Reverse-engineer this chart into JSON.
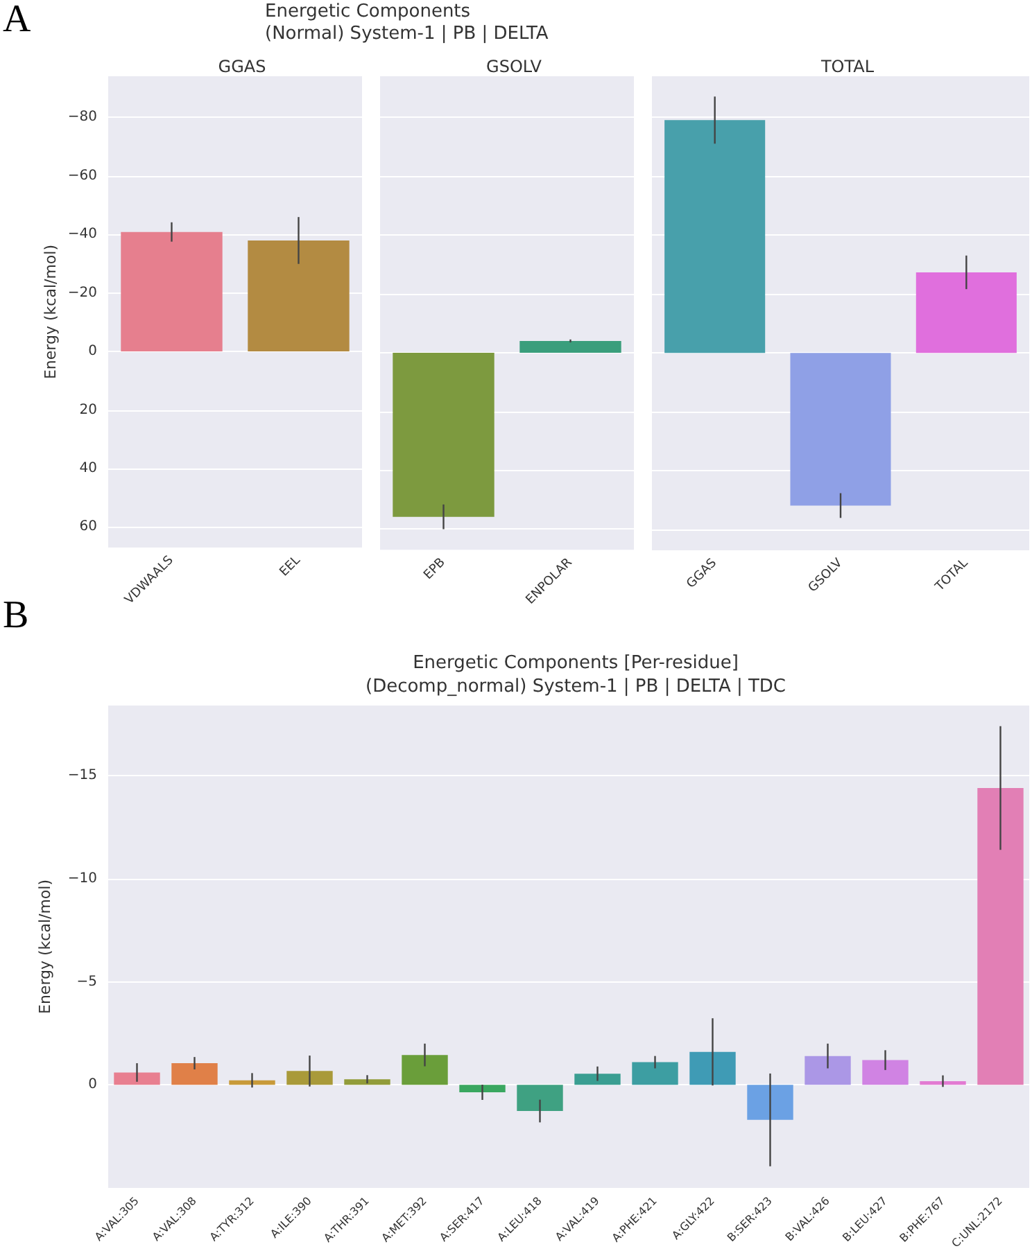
{
  "chart_data": [
    {
      "type": "bar",
      "title": "GGAS",
      "ylabel": "Energy (kcal/mol)",
      "annotations": [
        "A",
        "Energetic Components",
        "(Normal) System-1 | PB | DELTA"
      ],
      "categories": [
        "VDWAALS",
        "EEL"
      ],
      "values": [
        -40.8,
        -37.9
      ],
      "errors": [
        3.3,
        8
      ],
      "colors": [
        "#e67f8e",
        "#b38b42"
      ],
      "ylim": [
        67,
        -94
      ],
      "yticks": [
        {
          "value": -80,
          "label": "−80"
        },
        {
          "value": -60,
          "label": "−60"
        },
        {
          "value": -40,
          "label": "−40"
        },
        {
          "value": -20,
          "label": "−20"
        },
        0,
        20,
        40,
        60
      ],
      "grid": "y"
    },
    {
      "type": "bar",
      "title": "GSOLV",
      "categories": [
        "EPB",
        "ENPOLAR"
      ],
      "values": [
        55.8,
        -4.0
      ],
      "errors": [
        4.2,
        0.5
      ],
      "colors": [
        "#7d9a3f",
        "#3a9e7c"
      ],
      "ylim": [
        67,
        -94
      ],
      "yticks": [
        -80,
        -60,
        -40,
        -20,
        0,
        20,
        40,
        60
      ],
      "grid": "y",
      "tick_labels": "x"
    },
    {
      "type": "bar",
      "title": "TOTAL",
      "categories": [
        "GGAS",
        "GSOLV",
        "TOTAL"
      ],
      "values": [
        -79.1,
        51.8,
        -27.4
      ],
      "errors": [
        8,
        4.2,
        5.7
      ],
      "colors": [
        "#48a0ab",
        "#8fa0e6",
        "#e06fdd"
      ],
      "ylim": [
        67,
        -94
      ],
      "yticks": [
        -80,
        -60,
        -40,
        -20,
        0,
        20,
        40,
        60
      ],
      "grid": "y",
      "tick_labels": "x"
    },
    {
      "type": "bar",
      "title": "Energetic Components [Per-residue]",
      "subtitle": "(Decomp_normal) System-1 | PB | DELTA | TDC",
      "ylabel": "Energy (kcal/mol)",
      "annotations": [
        "B"
      ],
      "categories": [
        "A:VAL:305",
        "A:VAL:308",
        "A:TYR:312",
        "A:ILE:390",
        "A:THR:391",
        "A:MET:392",
        "A:SER:417",
        "A:LEU:418",
        "A:VAL:419",
        "A:PHE:421",
        "A:GLY:422",
        "B:SER:423",
        "B:VAL:426",
        "B:LEU:427",
        "B:PHE:767",
        "C:UNL:2172"
      ],
      "values": [
        -0.6,
        -1.05,
        -0.22,
        -0.67,
        -0.27,
        -1.45,
        0.36,
        1.27,
        -0.54,
        -1.1,
        -1.6,
        1.7,
        -1.4,
        -1.2,
        -0.18,
        -14.4
      ],
      "errors": [
        0.45,
        0.3,
        0.35,
        0.75,
        0.2,
        0.55,
        0.37,
        0.55,
        0.35,
        0.3,
        1.63,
        2.25,
        0.6,
        0.48,
        0.28,
        3.0
      ],
      "colors": [
        "#e87f90",
        "#e08048",
        "#c89a3a",
        "#a99a3a",
        "#929c3a",
        "#6a9e3a",
        "#3aa760",
        "#3fa182",
        "#3a9e92",
        "#3d9ea2",
        "#3f9bb5",
        "#6ba1e4",
        "#ab97e6",
        "#d083e3",
        "#e27bd2",
        "#e27fb5"
      ],
      "ylim": [
        5.0,
        -18.4
      ],
      "yticks": [
        {
          "value": -15,
          "label": "−15"
        },
        {
          "value": -10,
          "label": "−10"
        },
        {
          "value": -5,
          "label": "−5"
        },
        0
      ],
      "grid": "y"
    }
  ]
}
